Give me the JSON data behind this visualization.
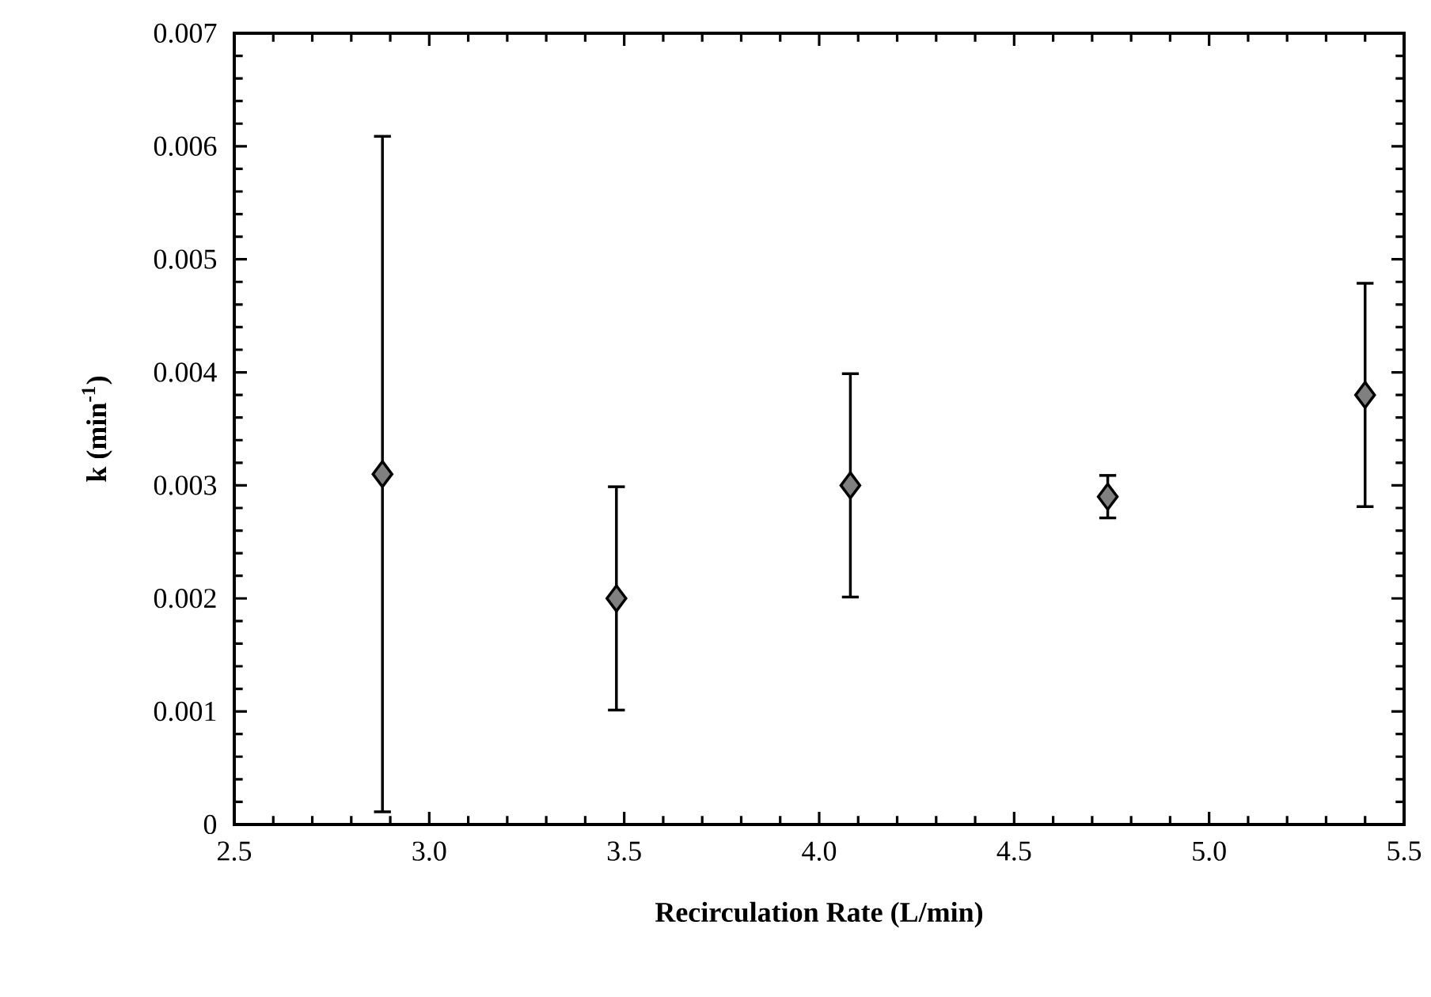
{
  "chart_data": {
    "type": "scatter",
    "xlabel": "Recirculation Rate (L/min)",
    "ylabel": "k (min$^{-1}$)",
    "x": [
      2.88,
      3.48,
      4.08,
      4.74,
      5.4
    ],
    "values": [
      0.0031,
      0.002,
      0.003,
      0.0029,
      0.0038
    ],
    "errors": [
      [
        0.0001,
        0.0061
      ],
      [
        0.001,
        0.003
      ],
      [
        0.002,
        0.004
      ],
      [
        0.0027,
        0.0031
      ],
      [
        0.0028,
        0.0048
      ]
    ],
    "color": "#808080",
    "marker": "diamond",
    "xlim": [
      2.5,
      5.5
    ],
    "xticks": [
      2.5,
      {
        "value": 3,
        "label": "3.0"
      },
      3.5,
      {
        "value": 4,
        "label": "4.0"
      },
      4.5,
      {
        "value": 5,
        "label": "5.0"
      },
      5.5
    ],
    "ylim": [
      0,
      0.007
    ],
    "yticks": [
      0,
      0.001,
      0.002,
      0.003,
      0.004,
      0.005,
      0.006,
      0.007
    ]
  }
}
